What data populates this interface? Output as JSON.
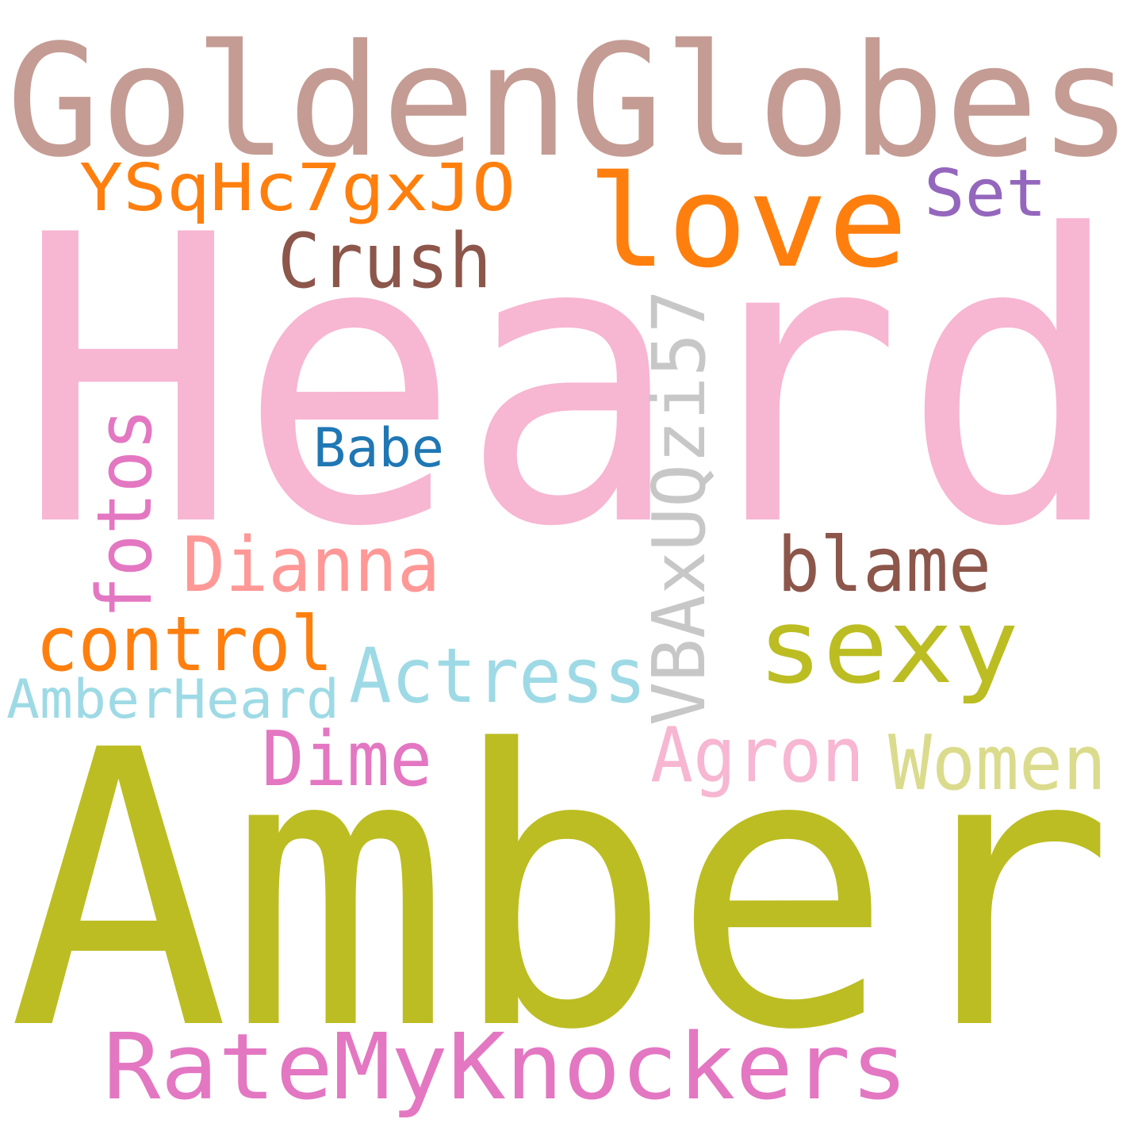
{
  "words": [
    {
      "text": "Heard",
      "color": "#f7b6d2"
    },
    {
      "text": "Amber",
      "color": "#bcbd22"
    },
    {
      "text": "GoldenGlobes",
      "color": "#c49c94"
    },
    {
      "text": "love",
      "color": "#ff7f0e"
    },
    {
      "text": "RateMyKnockers",
      "color": "#e377c2"
    },
    {
      "text": "YSqHc7gxJO",
      "color": "#ff7f0e"
    },
    {
      "text": "VBAxUQzi57",
      "color": "#c7c7c7"
    },
    {
      "text": "sexy",
      "color": "#bcbd22"
    },
    {
      "text": "Actress",
      "color": "#9edae5"
    },
    {
      "text": "control",
      "color": "#ff7f0e"
    },
    {
      "text": "Dianna",
      "color": "#ff9896"
    },
    {
      "text": "Women",
      "color": "#dbdb8d"
    },
    {
      "text": "blame",
      "color": "#8c564b"
    },
    {
      "text": "fotos",
      "color": "#e377c2"
    },
    {
      "text": "Crush",
      "color": "#8c564b"
    },
    {
      "text": "Agron",
      "color": "#f7b6d2"
    },
    {
      "text": "Dime",
      "color": "#e377c2"
    },
    {
      "text": "AmberHeard",
      "color": "#9edae5"
    },
    {
      "text": "Set",
      "color": "#9467bd"
    },
    {
      "text": "Babe",
      "color": "#1f77b4"
    }
  ]
}
